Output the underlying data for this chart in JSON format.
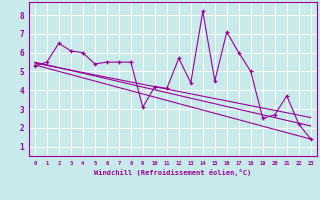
{
  "xlabel": "Windchill (Refroidissement éolien,°C)",
  "bg_color": "#c8eaea",
  "line_color": "#990099",
  "grid_color": "#ffffff",
  "xlim": [
    -0.5,
    23.5
  ],
  "ylim": [
    0.5,
    8.7
  ],
  "yticks": [
    1,
    2,
    3,
    4,
    5,
    6,
    7,
    8
  ],
  "xticks": [
    0,
    1,
    2,
    3,
    4,
    5,
    6,
    7,
    8,
    9,
    10,
    11,
    12,
    13,
    14,
    15,
    16,
    17,
    18,
    19,
    20,
    21,
    22,
    23
  ],
  "scatter_x": [
    0,
    1,
    2,
    3,
    4,
    5,
    6,
    7,
    8,
    9,
    10,
    11,
    12,
    13,
    14,
    15,
    16,
    17,
    18,
    19,
    20,
    21,
    22,
    23
  ],
  "scatter_y": [
    5.3,
    5.5,
    6.5,
    6.1,
    6.0,
    5.4,
    5.5,
    5.5,
    5.5,
    3.1,
    4.2,
    4.1,
    5.7,
    4.4,
    8.2,
    4.5,
    7.1,
    6.0,
    5.0,
    2.5,
    2.7,
    3.7,
    2.2,
    1.4
  ],
  "trend1_x": [
    0,
    23
  ],
  "trend1_y": [
    5.35,
    1.4
  ],
  "trend2_x": [
    0,
    23
  ],
  "trend2_y": [
    5.5,
    2.1
  ],
  "trend3_x": [
    0,
    23
  ],
  "trend3_y": [
    5.45,
    2.55
  ]
}
